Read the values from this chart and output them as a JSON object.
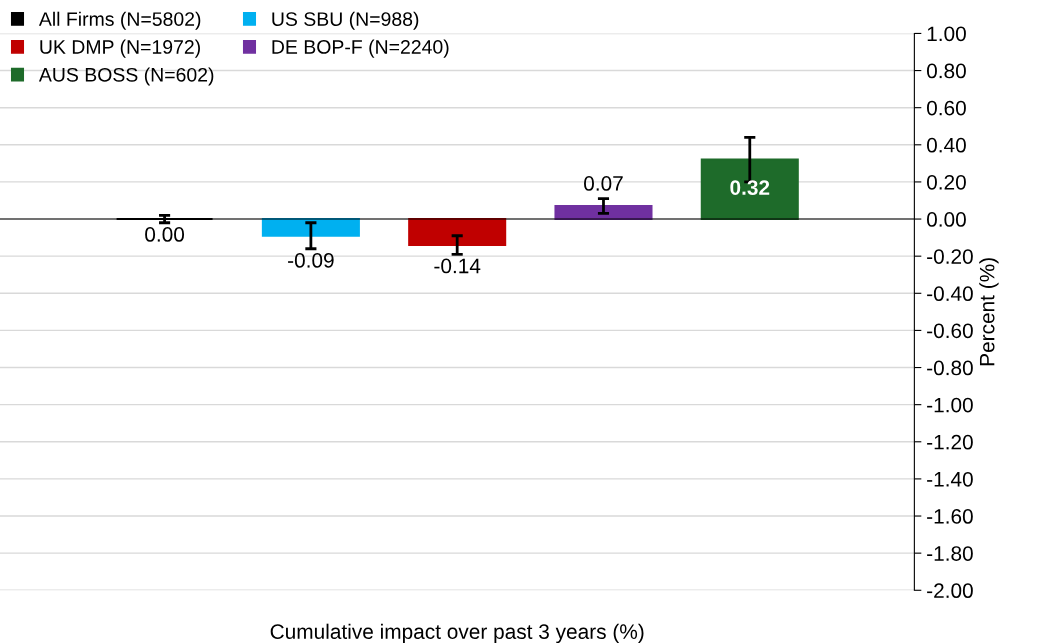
{
  "chart_data": {
    "type": "bar",
    "categories": [
      null
    ],
    "xlabel": "Cumulative impact over past 3 years (%)",
    "ylabel": "Percent (%)",
    "series": [
      {
        "name": "All Firms (N=5802)",
        "color": "#000000",
        "values": [
          0.0
        ],
        "errors": [
          0.02
        ],
        "value_labels": [
          "0.00"
        ]
      },
      {
        "name": "US SBU (N=988)",
        "color": "#00b0f0",
        "values": [
          -0.09
        ],
        "errors": [
          0.07
        ],
        "value_labels": [
          "-0.09"
        ]
      },
      {
        "name": "UK DMP (N=1972)",
        "color": "#c00000",
        "values": [
          -0.14
        ],
        "errors": [
          0.05
        ],
        "value_labels": [
          "-0.14"
        ]
      },
      {
        "name": "DE BOP-F (N=2240)",
        "color": "#7030a0",
        "values": [
          0.07
        ],
        "errors": [
          0.04
        ],
        "value_labels": [
          "0.07"
        ]
      },
      {
        "name": "AUS BOSS (N=602)",
        "color": "#1e6b2a",
        "values": [
          0.32
        ],
        "errors": [
          0.12
        ],
        "value_labels": [
          "0.32"
        ]
      }
    ],
    "ylim": [
      -2.0,
      1.0
    ],
    "yticks": [
      {
        "value": 1.0,
        "label": "1.00"
      },
      {
        "value": 0.8,
        "label": "0.80"
      },
      {
        "value": 0.6,
        "label": "0.60"
      },
      {
        "value": 0.4,
        "label": "0.40"
      },
      {
        "value": 0.2,
        "label": "0.20"
      },
      {
        "value": 0.0,
        "label": "0.00"
      },
      {
        "value": -0.2,
        "label": "-0.20"
      },
      {
        "value": -0.4,
        "label": "-0.40"
      },
      {
        "value": -0.6,
        "label": "-0.60"
      },
      {
        "value": -0.8,
        "label": "-0.80"
      },
      {
        "value": -1.0,
        "label": "-1.00"
      },
      {
        "value": -1.2,
        "label": "-1.20"
      },
      {
        "value": -1.4,
        "label": "-1.40"
      },
      {
        "value": -1.6,
        "label": "-1.60"
      },
      {
        "value": -1.8,
        "label": "-1.80"
      },
      {
        "value": -2.0,
        "label": "-2.00"
      }
    ],
    "grid": "y",
    "legend": "top left"
  }
}
